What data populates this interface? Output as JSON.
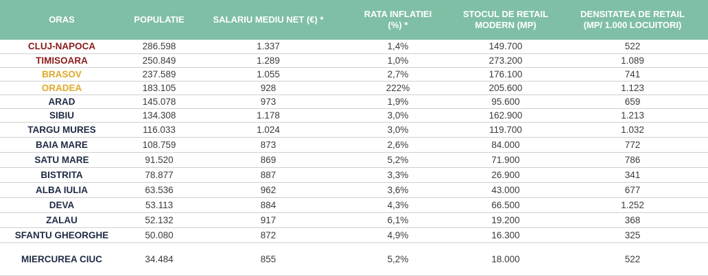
{
  "headers": {
    "oras": "ORAS",
    "populatie": "POPULATIE",
    "salariu": "SALARIU MEDIU NET (€) *",
    "inflatie_l1": "RATA INFLATIEI",
    "inflatie_l2": "(%) *",
    "stoc_l1": "STOCUL DE RETAIL",
    "stoc_l2": "MODERN (MP)",
    "dens_l1": "DENSITATEA DE RETAIL",
    "dens_l2": "(MP/ 1.000 LOCUITORI)"
  },
  "colors": {
    "header_bg": "#7fbfa5",
    "city_default": "#1f2a44",
    "city_red": "#8b1a1a",
    "city_gold": "#e0a829"
  },
  "rows": [
    {
      "oras": "CLUJ-NAPOCA",
      "populatie": "286.598",
      "salariu": "1.337",
      "inflatie": "1,4%",
      "stoc": "149.700",
      "densitate": "522"
    },
    {
      "oras": "TIMISOARA",
      "populatie": "250.849",
      "salariu": "1.289",
      "inflatie": "1,0%",
      "stoc": "273.200",
      "densitate": "1.089"
    },
    {
      "oras": "BRASOV",
      "populatie": "237.589",
      "salariu": "1.055",
      "inflatie": "2,7%",
      "stoc": "176.100",
      "densitate": "741"
    },
    {
      "oras": "ORADEA",
      "populatie": "183.105",
      "salariu": "928",
      "inflatie": "222%",
      "stoc": "205.600",
      "densitate": "1.123"
    },
    {
      "oras": "ARAD",
      "populatie": "145.078",
      "salariu": "973",
      "inflatie": "1,9%",
      "stoc": "95.600",
      "densitate": "659"
    },
    {
      "oras": "SIBIU",
      "populatie": "134.308",
      "salariu": "1.178",
      "inflatie": "3,0%",
      "stoc": "162.900",
      "densitate": "1.213"
    },
    {
      "oras": "TARGU MURES",
      "populatie": "116.033",
      "salariu": "1.024",
      "inflatie": "3,0%",
      "stoc": "119.700",
      "densitate": "1.032"
    },
    {
      "oras": "BAIA MARE",
      "populatie": "108.759",
      "salariu": "873",
      "inflatie": "2,6%",
      "stoc": "84.000",
      "densitate": "772"
    },
    {
      "oras": "SATU MARE",
      "populatie": "91.520",
      "salariu": "869",
      "inflatie": "5,2%",
      "stoc": "71.900",
      "densitate": "786"
    },
    {
      "oras": "BISTRITA",
      "populatie": "78.877",
      "salariu": "887",
      "inflatie": "3,3%",
      "stoc": "26.900",
      "densitate": "341"
    },
    {
      "oras": "ALBA IULIA",
      "populatie": "63.536",
      "salariu": "962",
      "inflatie": "3,6%",
      "stoc": "43.000",
      "densitate": "677"
    },
    {
      "oras": "DEVA",
      "populatie": "53.113",
      "salariu": "884",
      "inflatie": "4,3%",
      "stoc": "66.500",
      "densitate": "1.252"
    },
    {
      "oras": "ZALAU",
      "populatie": "52.132",
      "salariu": "917",
      "inflatie": "6,1%",
      "stoc": "19.200",
      "densitate": "368"
    },
    {
      "oras": "SFANTU GHEORGHE",
      "populatie": "50.080",
      "salariu": "872",
      "inflatie": "4,9%",
      "stoc": "16.300",
      "densitate": "325"
    },
    {
      "oras": "MIERCUREA CIUC",
      "populatie": "34.484",
      "salariu": "855",
      "inflatie": "5,2%",
      "stoc": "18.000",
      "densitate": "522"
    }
  ]
}
